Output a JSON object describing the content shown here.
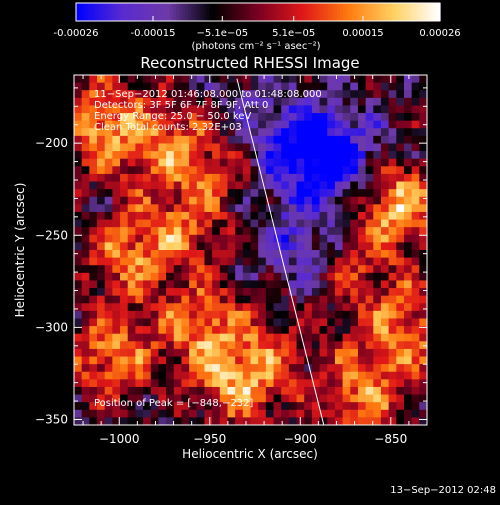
{
  "colorbar": {
    "ticks": [
      "-0.00026",
      "-0.00015",
      "−5.1e−05",
      "5.1e−05",
      "0.00015",
      "0.00026"
    ],
    "tick_values": [
      -0.00026,
      -0.00015,
      -5.1e-05,
      5.1e-05,
      0.00015,
      0.00026
    ],
    "range": [
      -0.00026,
      0.00026
    ],
    "unit_label": "(photons cm⁻² s⁻¹ asec⁻²)",
    "colors": [
      "#0000ff",
      "#5a2bd0",
      "#6e3aa8",
      "#000000",
      "#7a0020",
      "#e01818",
      "#ff7a10",
      "#ffd060",
      "#ffffff"
    ]
  },
  "chart_data": {
    "type": "heatmap",
    "title": "Reconstructed RHESSI Image",
    "xlabel": "Heliocentric X (arcsec)",
    "ylabel": "Heliocentric Y (arcsec)",
    "xlim": [
      -1025,
      -830
    ],
    "ylim": [
      -353,
      -163
    ],
    "x_ticks": [
      -1000,
      -950,
      -900,
      -850
    ],
    "x_tick_labels": [
      "−1000",
      "−950",
      "−900",
      "−850"
    ],
    "y_ticks": [
      -200,
      -250,
      -300,
      -350
    ],
    "y_tick_labels": [
      "−200",
      "−250",
      "−300",
      "−350"
    ],
    "annotations": [
      "11−Sep−2012 01:46:08.000 to 01:48:08.000",
      "Detectors: 3F 5F 6F 7F 8F 9F, Att 0",
      "Energy Range: 25.0 − 50.0 keV",
      "Clean    Total counts: 2.32E+03"
    ],
    "peak_label": "Position of Peak = [−848,−232]",
    "peak": [
      -848,
      -232
    ],
    "limb_line": [
      [
        -935,
        -165
      ],
      [
        -887,
        -353
      ]
    ],
    "limb_color": "#ffffff",
    "hot_spots": [
      {
        "x": -1010,
        "y": -190,
        "v": 0.8
      },
      {
        "x": -995,
        "y": -260,
        "v": 0.7
      },
      {
        "x": -1005,
        "y": -315,
        "v": 0.75
      },
      {
        "x": -975,
        "y": -200,
        "v": 0.6
      },
      {
        "x": -965,
        "y": -245,
        "v": 0.55
      },
      {
        "x": -955,
        "y": -300,
        "v": 0.7
      },
      {
        "x": -935,
        "y": -330,
        "v": 0.75
      },
      {
        "x": -945,
        "y": -210,
        "v": 0.5
      },
      {
        "x": -870,
        "y": -270,
        "v": 0.45
      },
      {
        "x": -848,
        "y": -232,
        "v": 1.0
      },
      {
        "x": -840,
        "y": -300,
        "v": 0.7
      },
      {
        "x": -865,
        "y": -335,
        "v": 0.75
      },
      {
        "x": -915,
        "y": -315,
        "v": 0.35
      }
    ],
    "cold_spots": [
      {
        "x": -893,
        "y": -205,
        "v": -0.9
      },
      {
        "x": -900,
        "y": -255,
        "v": -0.45
      },
      {
        "x": -925,
        "y": -195,
        "v": -0.4
      },
      {
        "x": -870,
        "y": -215,
        "v": -0.45
      }
    ]
  },
  "footer": {
    "timestamp": "13−Sep−2012 02:48"
  }
}
